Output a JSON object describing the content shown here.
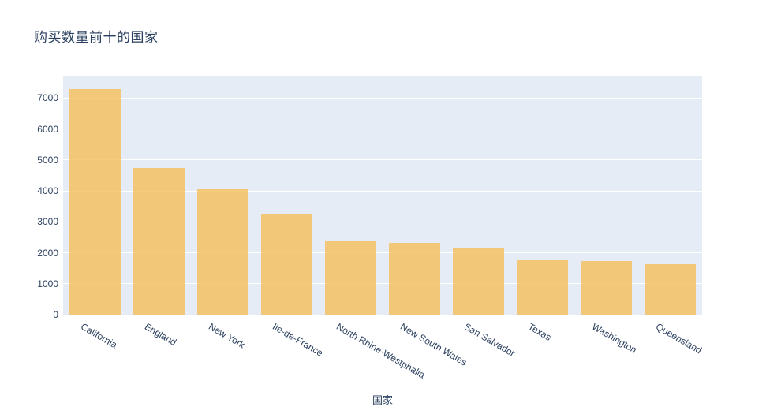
{
  "page": {
    "background_color": "#ffffff"
  },
  "chart_data": {
    "type": "bar",
    "title": "购买数量前十的国家",
    "xlabel": "国家",
    "ylabel": "",
    "categories": [
      "California",
      "England",
      "New York",
      "Ile-de-France",
      "North Rhine-Westphalia",
      "New South Wales",
      "San Salvador",
      "Texas",
      "Washington",
      "Queensland"
    ],
    "values": [
      7300,
      4750,
      4050,
      3250,
      2360,
      2320,
      2150,
      1770,
      1730,
      1630
    ],
    "ylim": [
      0,
      7700
    ],
    "yticks": [
      0,
      1000,
      2000,
      3000,
      4000,
      5000,
      6000,
      7000
    ],
    "tick_angle": 30,
    "grid": true,
    "legend": "none",
    "colors": {
      "bar_fill": "rgba(245,194,97,0.85)",
      "plot_background": "#e5ecf6",
      "gridline": "#ffffff",
      "text": "#2a3f5f"
    }
  }
}
